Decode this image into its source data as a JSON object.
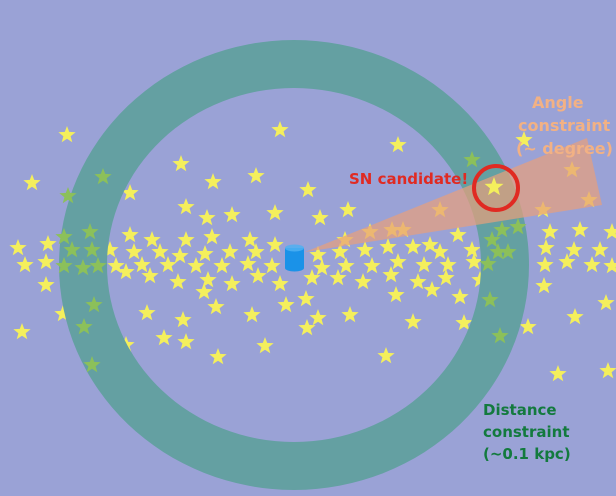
{
  "colors": {
    "background": "#9aa2d6",
    "ring": "#64a0a2",
    "star": "#f4ef5c",
    "star_on_ring": "#8cc05a",
    "cone": "#e8a07a",
    "candidate_circle": "#e02a22",
    "detector": "#1a92e8",
    "angle_text": "#f2b184",
    "sn_text": "#e02a22",
    "distance_text": "#137a3e"
  },
  "icons": {
    "star": "star-icon",
    "detector": "cylinder-icon"
  },
  "labels": {
    "angle": [
      "Angle",
      "constraint",
      "(~ degree)"
    ],
    "sn_candidate": "SN candidate!",
    "distance": [
      "Distance",
      "constraint",
      "(~0.1 kpc)"
    ]
  }
}
